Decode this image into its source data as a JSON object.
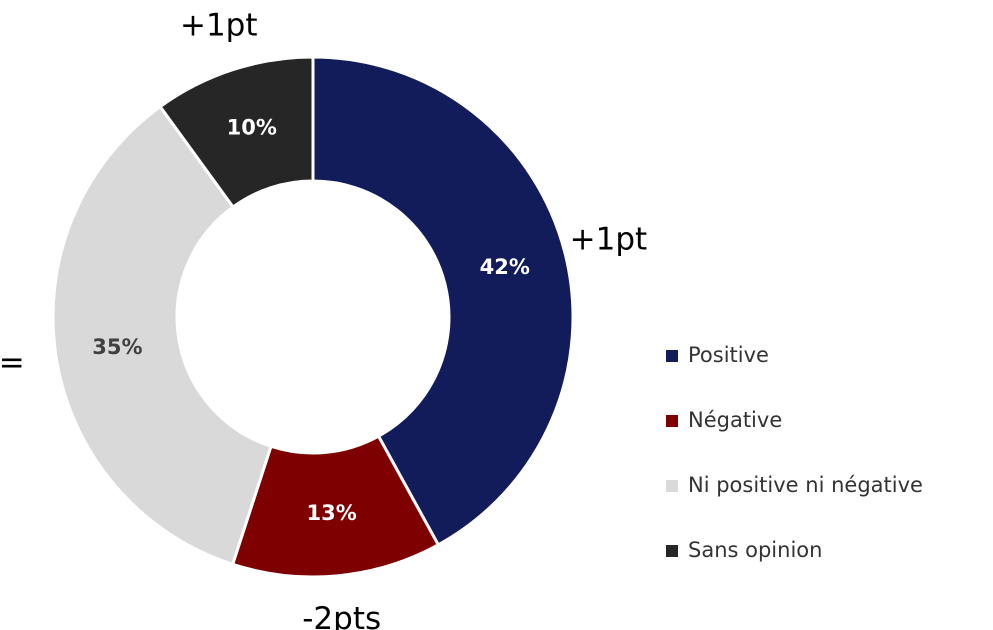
{
  "chart_data": {
    "type": "donut",
    "categories": [
      "Positive",
      "Négative",
      "Ni positive ni négative",
      "Sans opinion"
    ],
    "values": [
      42,
      13,
      35,
      10
    ],
    "value_labels": [
      "42%",
      "13%",
      "35%",
      "10%"
    ],
    "changes": [
      "+1pt",
      "-2pts",
      "=",
      "+1pt"
    ],
    "colors": [
      "#121c5a",
      "#7f0000",
      "#d9d9d9",
      "#262626"
    ],
    "legend": "right"
  }
}
